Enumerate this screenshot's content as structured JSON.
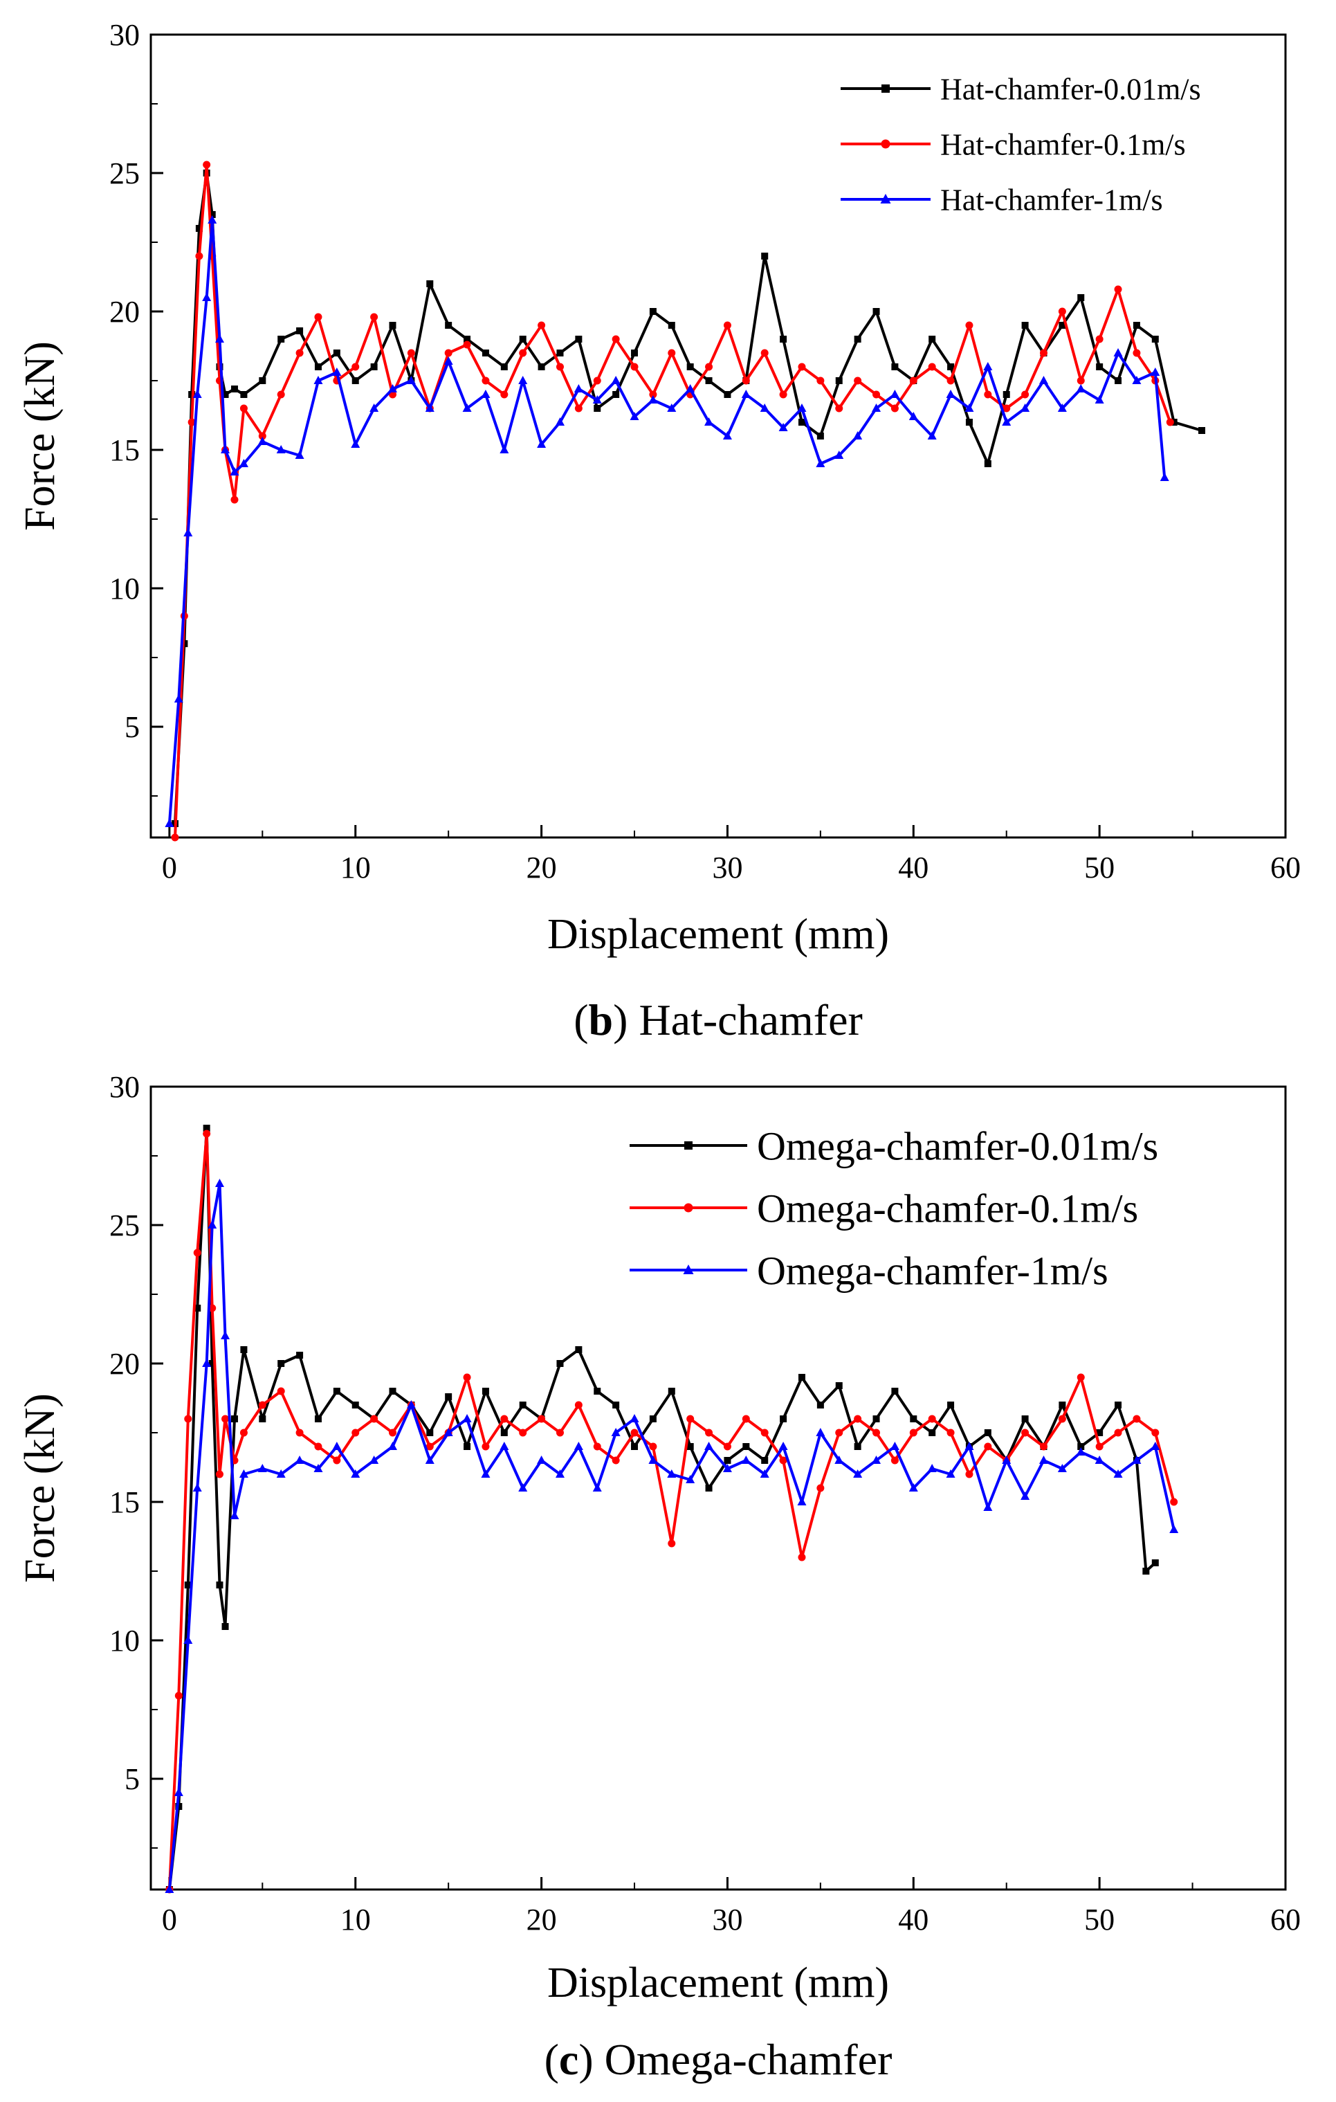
{
  "chart_data": [
    {
      "id": "b",
      "type": "line",
      "title": "Hat-chamfer",
      "caption_letter": "b",
      "caption_text": "Hat-chamfer",
      "xlabel": "Displacement (mm)",
      "ylabel": "Force (kN)",
      "xlim": [
        -1,
        60
      ],
      "ylim": [
        1,
        30
      ],
      "xticks": [
        "0",
        "10",
        "20",
        "30",
        "40",
        "50",
        "60"
      ],
      "yticks": [
        "5",
        "10",
        "15",
        "20",
        "25",
        "30"
      ],
      "legend_position": "top-right",
      "series": [
        {
          "name": "Hat-chamfer-0.01m/s",
          "color": "#000000",
          "marker": "square",
          "x": [
            0.3,
            0.8,
            1.2,
            1.6,
            2.0,
            2.3,
            2.7,
            3.0,
            3.5,
            4.0,
            5.0,
            6.0,
            7.0,
            8.0,
            9.0,
            10.0,
            11.0,
            12.0,
            13.0,
            14.0,
            15.0,
            16.0,
            17.0,
            18.0,
            19.0,
            20.0,
            21.0,
            22.0,
            23.0,
            24.0,
            25.0,
            26.0,
            27.0,
            28.0,
            29.0,
            30.0,
            31.0,
            32.0,
            33.0,
            34.0,
            35.0,
            36.0,
            37.0,
            38.0,
            39.0,
            40.0,
            41.0,
            42.0,
            43.0,
            44.0,
            45.0,
            46.0,
            47.0,
            48.0,
            49.0,
            50.0,
            51.0,
            52.0,
            53.0,
            54.0,
            55.5
          ],
          "values": [
            1.5,
            8.0,
            17.0,
            23.0,
            25.0,
            23.5,
            18.0,
            17.0,
            17.2,
            17.0,
            17.5,
            19.0,
            19.3,
            18.0,
            18.5,
            17.5,
            18.0,
            19.5,
            17.5,
            21.0,
            19.5,
            19.0,
            18.5,
            18.0,
            19.0,
            18.0,
            18.5,
            19.0,
            16.5,
            17.0,
            18.5,
            20.0,
            19.5,
            18.0,
            17.5,
            17.0,
            17.5,
            22.0,
            19.0,
            16.0,
            15.5,
            17.5,
            19.0,
            20.0,
            18.0,
            17.5,
            19.0,
            18.0,
            16.0,
            14.5,
            17.0,
            19.5,
            18.5,
            19.5,
            20.5,
            18.0,
            17.5,
            19.5,
            19.0,
            16.0,
            15.7
          ]
        },
        {
          "name": "Hat-chamfer-0.1m/s",
          "color": "#ff0000",
          "marker": "circle",
          "x": [
            0.3,
            0.8,
            1.2,
            1.6,
            2.0,
            2.3,
            2.7,
            3.0,
            3.5,
            4.0,
            5.0,
            6.0,
            7.0,
            8.0,
            9.0,
            10.0,
            11.0,
            12.0,
            13.0,
            14.0,
            15.0,
            16.0,
            17.0,
            18.0,
            19.0,
            20.0,
            21.0,
            22.0,
            23.0,
            24.0,
            25.0,
            26.0,
            27.0,
            28.0,
            29.0,
            30.0,
            31.0,
            32.0,
            33.0,
            34.0,
            35.0,
            36.0,
            37.0,
            38.0,
            39.0,
            40.0,
            41.0,
            42.0,
            43.0,
            44.0,
            45.0,
            46.0,
            47.0,
            48.0,
            49.0,
            50.0,
            51.0,
            52.0,
            53.0,
            53.8
          ],
          "values": [
            1.0,
            9.0,
            16.0,
            22.0,
            25.3,
            22.0,
            17.5,
            15.0,
            13.2,
            16.5,
            15.5,
            17.0,
            18.5,
            19.8,
            17.5,
            18.0,
            19.8,
            17.0,
            18.5,
            16.5,
            18.5,
            18.8,
            17.5,
            17.0,
            18.5,
            19.5,
            18.0,
            16.5,
            17.5,
            19.0,
            18.0,
            17.0,
            18.5,
            17.0,
            18.0,
            19.5,
            17.5,
            18.5,
            17.0,
            18.0,
            17.5,
            16.5,
            17.5,
            17.0,
            16.5,
            17.5,
            18.0,
            17.5,
            19.5,
            17.0,
            16.5,
            17.0,
            18.5,
            20.0,
            17.5,
            19.0,
            20.8,
            18.5,
            17.5,
            16.0
          ]
        },
        {
          "name": "Hat-chamfer-1m/s",
          "color": "#0000ff",
          "marker": "triangle",
          "x": [
            0.0,
            0.5,
            1.0,
            1.5,
            2.0,
            2.3,
            2.7,
            3.0,
            3.5,
            4.0,
            5.0,
            6.0,
            7.0,
            8.0,
            9.0,
            10.0,
            11.0,
            12.0,
            13.0,
            14.0,
            15.0,
            16.0,
            17.0,
            18.0,
            19.0,
            20.0,
            21.0,
            22.0,
            23.0,
            24.0,
            25.0,
            26.0,
            27.0,
            28.0,
            29.0,
            30.0,
            31.0,
            32.0,
            33.0,
            34.0,
            35.0,
            36.0,
            37.0,
            38.0,
            39.0,
            40.0,
            41.0,
            42.0,
            43.0,
            44.0,
            45.0,
            46.0,
            47.0,
            48.0,
            49.0,
            50.0,
            51.0,
            52.0,
            53.0,
            53.5
          ],
          "values": [
            1.5,
            6.0,
            12.0,
            17.0,
            20.5,
            23.3,
            19.0,
            15.0,
            14.2,
            14.5,
            15.3,
            15.0,
            14.8,
            17.5,
            17.8,
            15.2,
            16.5,
            17.2,
            17.5,
            16.5,
            18.2,
            16.5,
            17.0,
            15.0,
            17.5,
            15.2,
            16.0,
            17.2,
            16.8,
            17.5,
            16.2,
            16.8,
            16.5,
            17.2,
            16.0,
            15.5,
            17.0,
            16.5,
            15.8,
            16.5,
            14.5,
            14.8,
            15.5,
            16.5,
            17.0,
            16.2,
            15.5,
            17.0,
            16.5,
            18.0,
            16.0,
            16.5,
            17.5,
            16.5,
            17.2,
            16.8,
            18.5,
            17.5,
            17.8,
            14.0
          ]
        }
      ]
    },
    {
      "id": "c",
      "type": "line",
      "title": "Omega-chamfer",
      "caption_letter": "c",
      "caption_text": "Omega-chamfer",
      "xlabel": "Displacement (mm)",
      "ylabel": "Force (kN)",
      "xlim": [
        -1,
        60
      ],
      "ylim": [
        1,
        30
      ],
      "xticks": [
        "0",
        "10",
        "20",
        "30",
        "40",
        "50",
        "60"
      ],
      "yticks": [
        "5",
        "10",
        "15",
        "20",
        "25",
        "30"
      ],
      "legend_position": "top-right",
      "series": [
        {
          "name": "Omega-chamfer-0.01m/s",
          "color": "#000000",
          "marker": "square",
          "x": [
            0.0,
            0.5,
            1.0,
            1.5,
            2.0,
            2.3,
            2.7,
            3.0,
            3.5,
            4.0,
            5.0,
            6.0,
            7.0,
            8.0,
            9.0,
            10.0,
            11.0,
            12.0,
            13.0,
            14.0,
            15.0,
            16.0,
            17.0,
            18.0,
            19.0,
            20.0,
            21.0,
            22.0,
            23.0,
            24.0,
            25.0,
            26.0,
            27.0,
            28.0,
            29.0,
            30.0,
            31.0,
            32.0,
            33.0,
            34.0,
            35.0,
            36.0,
            37.0,
            38.0,
            39.0,
            40.0,
            41.0,
            42.0,
            43.0,
            44.0,
            45.0,
            46.0,
            47.0,
            48.0,
            49.0,
            50.0,
            51.0,
            52.0,
            52.5,
            53.0
          ],
          "values": [
            1.0,
            4.0,
            12.0,
            22.0,
            28.5,
            20.0,
            12.0,
            10.5,
            18.0,
            20.5,
            18.0,
            20.0,
            20.3,
            18.0,
            19.0,
            18.5,
            18.0,
            19.0,
            18.5,
            17.5,
            18.8,
            17.0,
            19.0,
            17.5,
            18.5,
            18.0,
            20.0,
            20.5,
            19.0,
            18.5,
            17.0,
            18.0,
            19.0,
            17.0,
            15.5,
            16.5,
            17.0,
            16.5,
            18.0,
            19.5,
            18.5,
            19.2,
            17.0,
            18.0,
            19.0,
            18.0,
            17.5,
            18.5,
            17.0,
            17.5,
            16.5,
            18.0,
            17.0,
            18.5,
            17.0,
            17.5,
            18.5,
            16.5,
            12.5,
            12.8
          ]
        },
        {
          "name": "Omega-chamfer-0.1m/s",
          "color": "#ff0000",
          "marker": "circle",
          "x": [
            0.0,
            0.5,
            1.0,
            1.5,
            2.0,
            2.3,
            2.7,
            3.0,
            3.5,
            4.0,
            5.0,
            6.0,
            7.0,
            8.0,
            9.0,
            10.0,
            11.0,
            12.0,
            13.0,
            14.0,
            15.0,
            16.0,
            17.0,
            18.0,
            19.0,
            20.0,
            21.0,
            22.0,
            23.0,
            24.0,
            25.0,
            26.0,
            27.0,
            28.0,
            29.0,
            30.0,
            31.0,
            32.0,
            33.0,
            34.0,
            35.0,
            36.0,
            37.0,
            38.0,
            39.0,
            40.0,
            41.0,
            42.0,
            43.0,
            44.0,
            45.0,
            46.0,
            47.0,
            48.0,
            49.0,
            50.0,
            51.0,
            52.0,
            53.0,
            54.0
          ],
          "values": [
            1.0,
            8.0,
            18.0,
            24.0,
            28.3,
            22.0,
            16.0,
            18.0,
            16.5,
            17.5,
            18.5,
            19.0,
            17.5,
            17.0,
            16.5,
            17.5,
            18.0,
            17.5,
            18.5,
            17.0,
            17.5,
            19.5,
            17.0,
            18.0,
            17.5,
            18.0,
            17.5,
            18.5,
            17.0,
            16.5,
            17.5,
            17.0,
            13.5,
            18.0,
            17.5,
            17.0,
            18.0,
            17.5,
            16.5,
            13.0,
            15.5,
            17.5,
            18.0,
            17.5,
            16.5,
            17.5,
            18.0,
            17.5,
            16.0,
            17.0,
            16.5,
            17.5,
            17.0,
            18.0,
            19.5,
            17.0,
            17.5,
            18.0,
            17.5,
            15.0
          ]
        },
        {
          "name": "Omega-chamfer-1m/s",
          "color": "#0000ff",
          "marker": "triangle",
          "x": [
            0.0,
            0.5,
            1.0,
            1.5,
            2.0,
            2.3,
            2.7,
            3.0,
            3.5,
            4.0,
            5.0,
            6.0,
            7.0,
            8.0,
            9.0,
            10.0,
            11.0,
            12.0,
            13.0,
            14.0,
            15.0,
            16.0,
            17.0,
            18.0,
            19.0,
            20.0,
            21.0,
            22.0,
            23.0,
            24.0,
            25.0,
            26.0,
            27.0,
            28.0,
            29.0,
            30.0,
            31.0,
            32.0,
            33.0,
            34.0,
            35.0,
            36.0,
            37.0,
            38.0,
            39.0,
            40.0,
            41.0,
            42.0,
            43.0,
            44.0,
            45.0,
            46.0,
            47.0,
            48.0,
            49.0,
            50.0,
            51.0,
            52.0,
            53.0,
            54.0
          ],
          "values": [
            1.0,
            4.5,
            10.0,
            15.5,
            20.0,
            25.0,
            26.5,
            21.0,
            14.5,
            16.0,
            16.2,
            16.0,
            16.5,
            16.2,
            17.0,
            16.0,
            16.5,
            17.0,
            18.5,
            16.5,
            17.5,
            18.0,
            16.0,
            17.0,
            15.5,
            16.5,
            16.0,
            17.0,
            15.5,
            17.5,
            18.0,
            16.5,
            16.0,
            15.8,
            17.0,
            16.2,
            16.5,
            16.0,
            17.0,
            15.0,
            17.5,
            16.5,
            16.0,
            16.5,
            17.0,
            15.5,
            16.2,
            16.0,
            17.0,
            14.8,
            16.5,
            15.2,
            16.5,
            16.2,
            16.8,
            16.5,
            16.0,
            16.5,
            17.0,
            14.0
          ]
        }
      ]
    }
  ]
}
